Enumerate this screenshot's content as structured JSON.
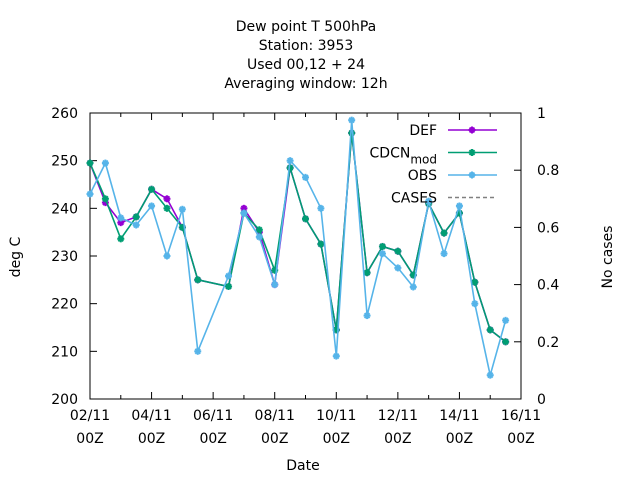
{
  "chart_data": {
    "type": "line",
    "title": [
      "Dew point T 500hPa",
      "Station:     3953",
      "Used  00,12  + 24",
      "Averaging window: 12h"
    ],
    "xlabel": "Date",
    "ylabel": "deg C",
    "y2label": "No cases",
    "ylim": [
      200,
      260
    ],
    "y2lim": [
      0,
      1
    ],
    "xlim": [
      0,
      14
    ],
    "x_unit": "days from 02/11 00Z",
    "x_ticks": [
      {
        "line1": "02/11",
        "line2": "00Z"
      },
      {
        "line1": "04/11",
        "line2": "00Z"
      },
      {
        "line1": "06/11",
        "line2": "00Z"
      },
      {
        "line1": "08/11",
        "line2": "00Z"
      },
      {
        "line1": "10/11",
        "line2": "00Z"
      },
      {
        "line1": "12/11",
        "line2": "00Z"
      },
      {
        "line1": "14/11",
        "line2": "00Z"
      },
      {
        "line1": "16/11",
        "line2": "00Z"
      }
    ],
    "y_ticks": [
      "200",
      "210",
      "220",
      "230",
      "240",
      "250",
      "260"
    ],
    "y2_ticks": [
      "0",
      "0.2",
      "0.4",
      "0.6",
      "0.8",
      "1"
    ],
    "legend_position": "top-right",
    "series": [
      {
        "name": "DEF",
        "color": "#9400d3",
        "style": "solid",
        "x": [
          0,
          0.5,
          1,
          1.5,
          2,
          2.5,
          3,
          3.5,
          4.5,
          5,
          5.5,
          6,
          6.5,
          7,
          7.5,
          8,
          8.5,
          9,
          9.5,
          10,
          10.5,
          11,
          11.5,
          12,
          12.5,
          13,
          13.5
        ],
        "y": [
          249.5,
          241.2,
          237.0,
          238.2,
          244.0,
          242.0,
          236.0,
          225.0,
          223.6,
          240.0,
          235.0,
          224.0,
          248.5,
          237.8,
          232.5,
          214.5,
          255.8,
          226.5,
          232.0,
          231.0,
          226.0,
          241.0,
          234.8,
          239.0,
          224.5,
          214.5,
          212.0
        ]
      },
      {
        "name": "CDCN_mod",
        "color": "#009e73",
        "style": "solid",
        "x": [
          0,
          0.5,
          1,
          1.5,
          2,
          2.5,
          3,
          3.5,
          4.5,
          5,
          5.5,
          6,
          6.5,
          7,
          7.5,
          8,
          8.5,
          9,
          9.5,
          10,
          10.5,
          11,
          11.5,
          12,
          12.5,
          13,
          13.5
        ],
        "y": [
          249.5,
          242.0,
          233.6,
          238.2,
          244.0,
          240.0,
          236.0,
          225.0,
          223.6,
          239.0,
          235.5,
          227.0,
          248.5,
          237.8,
          232.5,
          214.5,
          255.8,
          226.5,
          232.0,
          231.0,
          226.0,
          241.0,
          234.8,
          239.0,
          224.5,
          214.5,
          212.0
        ]
      },
      {
        "name": "OBS",
        "color": "#56b4e9",
        "style": "solid",
        "x": [
          0,
          0.5,
          1,
          1.5,
          2,
          2.5,
          3,
          3.5,
          4.5,
          5,
          5.5,
          6,
          6.5,
          7,
          7.5,
          8,
          8.5,
          9,
          9.5,
          10,
          10.5,
          11,
          11.5,
          12,
          12.5,
          13,
          13.5
        ],
        "y": [
          243.0,
          249.5,
          238.0,
          236.5,
          240.5,
          230.0,
          239.8,
          210.0,
          225.8,
          239.0,
          234.0,
          224.0,
          250.0,
          246.5,
          240.0,
          209.0,
          258.5,
          217.5,
          230.5,
          227.5,
          223.5,
          241.5,
          230.5,
          240.5,
          220.0,
          205.0,
          216.5
        ]
      },
      {
        "name": "CASES",
        "color": "#808080",
        "style": "dashed",
        "x": [],
        "y": []
      }
    ],
    "legend": [
      {
        "label": "DEF",
        "color": "#9400d3",
        "style": "solid"
      },
      {
        "label": "CDCN_mod",
        "color": "#009e73",
        "style": "solid"
      },
      {
        "label": "OBS",
        "color": "#56b4e9",
        "style": "solid"
      },
      {
        "label": "CASES",
        "color": "#808080",
        "style": "dashed"
      }
    ]
  }
}
